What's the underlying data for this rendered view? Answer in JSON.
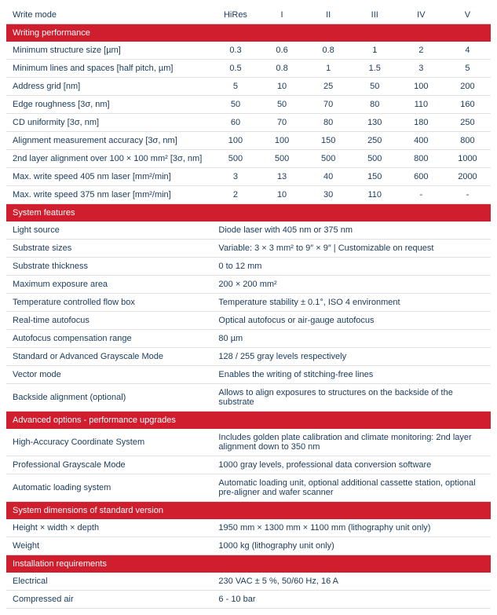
{
  "colors": {
    "section_bg": "#d01e2f",
    "section_fg": "#ffffff",
    "text": "#1a3a5c",
    "row_border": "#e0e0e0",
    "background": "#ffffff"
  },
  "header": {
    "label": "Write mode",
    "cols": [
      "HiRes",
      "I",
      "II",
      "III",
      "IV",
      "V"
    ]
  },
  "sections": [
    {
      "title": "Writing performance",
      "rows": [
        {
          "label": "Minimum structure size [µm]",
          "vals": [
            "0.3",
            "0.6",
            "0.8",
            "1",
            "2",
            "4"
          ]
        },
        {
          "label": "Minimum lines and spaces [half pitch, µm]",
          "vals": [
            "0.5",
            "0.8",
            "1",
            "1.5",
            "3",
            "5"
          ]
        },
        {
          "label": "Address grid [nm]",
          "vals": [
            "5",
            "10",
            "25",
            "50",
            "100",
            "200"
          ]
        },
        {
          "label": "Edge roughness [3σ, nm]",
          "vals": [
            "50",
            "50",
            "70",
            "80",
            "110",
            "160"
          ]
        },
        {
          "label": "CD uniformity [3σ, nm]",
          "vals": [
            "60",
            "70",
            "80",
            "130",
            "180",
            "250"
          ]
        },
        {
          "label": "Alignment measurement accuracy [3σ, nm]",
          "vals": [
            "100",
            "100",
            "150",
            "250",
            "400",
            "800"
          ]
        },
        {
          "label": "2nd layer alignment over 100 × 100 mm² [3σ, nm]",
          "vals": [
            "500",
            "500",
            "500",
            "500",
            "800",
            "1000"
          ]
        },
        {
          "label": "Max. write speed 405 nm laser [mm²/min]",
          "vals": [
            "3",
            "13",
            "40",
            "150",
            "600",
            "2000"
          ]
        },
        {
          "label": "Max. write speed 375 nm laser [mm²/min]",
          "vals": [
            "2",
            "10",
            "30",
            "110",
            "-",
            "-"
          ]
        }
      ]
    },
    {
      "title": "System features",
      "rows": [
        {
          "label": "Light source",
          "span": "Diode laser with 405 nm or 375 nm"
        },
        {
          "label": "Substrate sizes",
          "span": "Variable: 3 × 3 mm² to 9″ × 9″ | Customizable on request"
        },
        {
          "label": "Substrate thickness",
          "span": "0 to 12 mm"
        },
        {
          "label": "Maximum exposure area",
          "span": "200 × 200 mm²"
        },
        {
          "label": "Temperature controlled flow box",
          "span": "Temperature stability ± 0.1°, ISO 4 environment"
        },
        {
          "label": "Real-time autofocus",
          "span": "Optical autofocus or air-gauge autofocus"
        },
        {
          "label": "Autofocus compensation range",
          "span": "80 µm"
        },
        {
          "label": "Standard or Advanced Grayscale Mode",
          "span": "128 / 255 gray levels respectively"
        },
        {
          "label": "Vector mode",
          "span": "Enables the writing of stitching-free lines"
        },
        {
          "label": "Backside alignment (optional)",
          "span": "Allows to align exposures to structures on the backside of the substrate"
        }
      ]
    },
    {
      "title": "Advanced options - performance upgrades",
      "rows": [
        {
          "label": "High-Accuracy Coordinate System",
          "span": "Includes golden plate calibration and climate monitoring: 2nd layer alignment down to 350 nm"
        },
        {
          "label": "Professional Grayscale Mode",
          "span": "1000 gray levels, professional data conversion software"
        },
        {
          "label": "Automatic loading system",
          "span": "Automatic loading unit, optional additional cassette station,  optional pre-aligner and wafer scanner"
        }
      ]
    },
    {
      "title": "System dimensions of standard version",
      "rows": [
        {
          "label": "Height × width × depth",
          "span": "1950 mm × 1300 mm × 1100 mm (lithography unit only)"
        },
        {
          "label": "Weight",
          "span": "1000 kg (lithography unit only)"
        }
      ]
    },
    {
      "title": "Installation requirements",
      "rows": [
        {
          "label": "Electrical",
          "span": " 230 VAC ± 5 %, 50/60 Hz, 16 A"
        },
        {
          "label": "Compressed air",
          "span": "6 - 10 bar"
        }
      ]
    }
  ]
}
